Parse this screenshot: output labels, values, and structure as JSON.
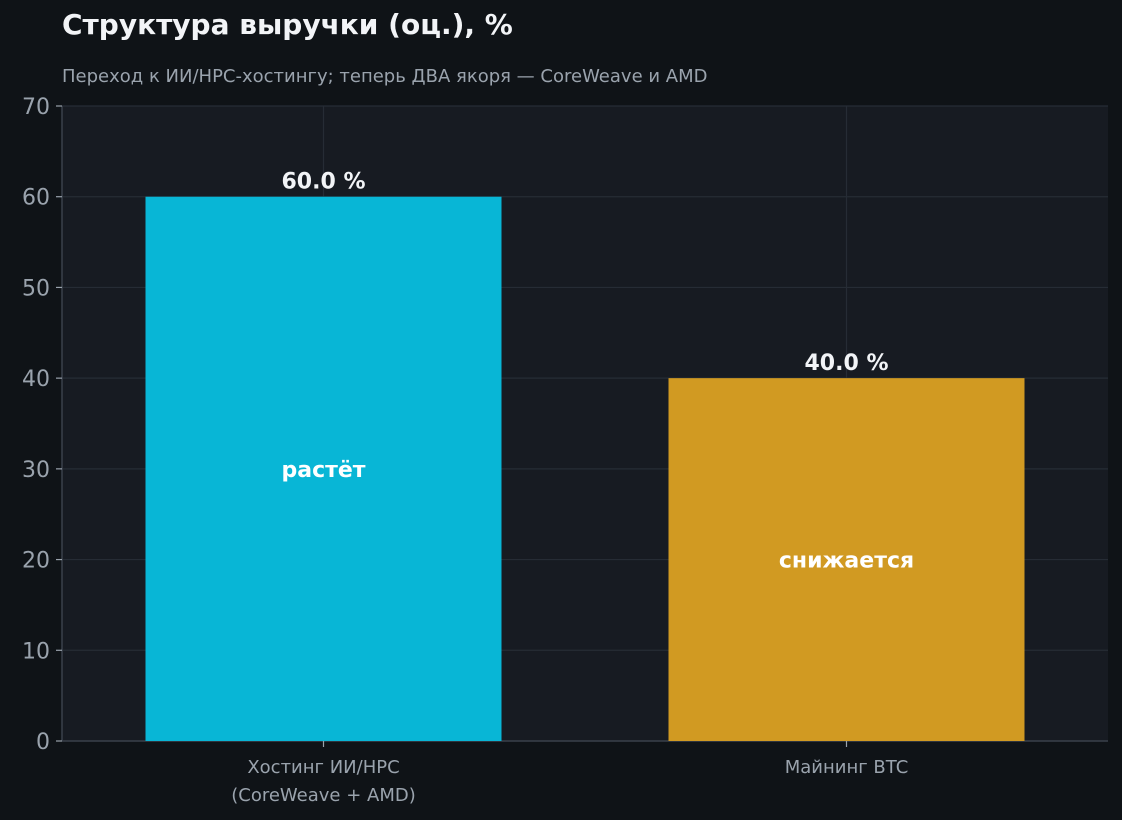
{
  "title": "Структура выручки (оц.), %",
  "subtitle": "Переход к ИИ/HPC-хостингу; теперь ДВА якоря — CoreWeave и AMD",
  "chart_data": {
    "type": "bar",
    "categories": [
      [
        "Хостинг ИИ/HPC",
        "(CoreWeave + AMD)"
      ],
      [
        "Майнинг BTC"
      ]
    ],
    "values": [
      60.0,
      40.0
    ],
    "value_labels": [
      "60.0 %",
      "40.0 %"
    ],
    "bar_annotations": [
      "растёт",
      "снижается"
    ],
    "colors": [
      "#08b6d6",
      "#d19a22"
    ],
    "ylim": [
      0,
      70
    ],
    "yticks": [
      0,
      10,
      20,
      30,
      40,
      50,
      60,
      70
    ],
    "xlabel": "",
    "ylabel": "",
    "grid": true,
    "legend": "none"
  }
}
